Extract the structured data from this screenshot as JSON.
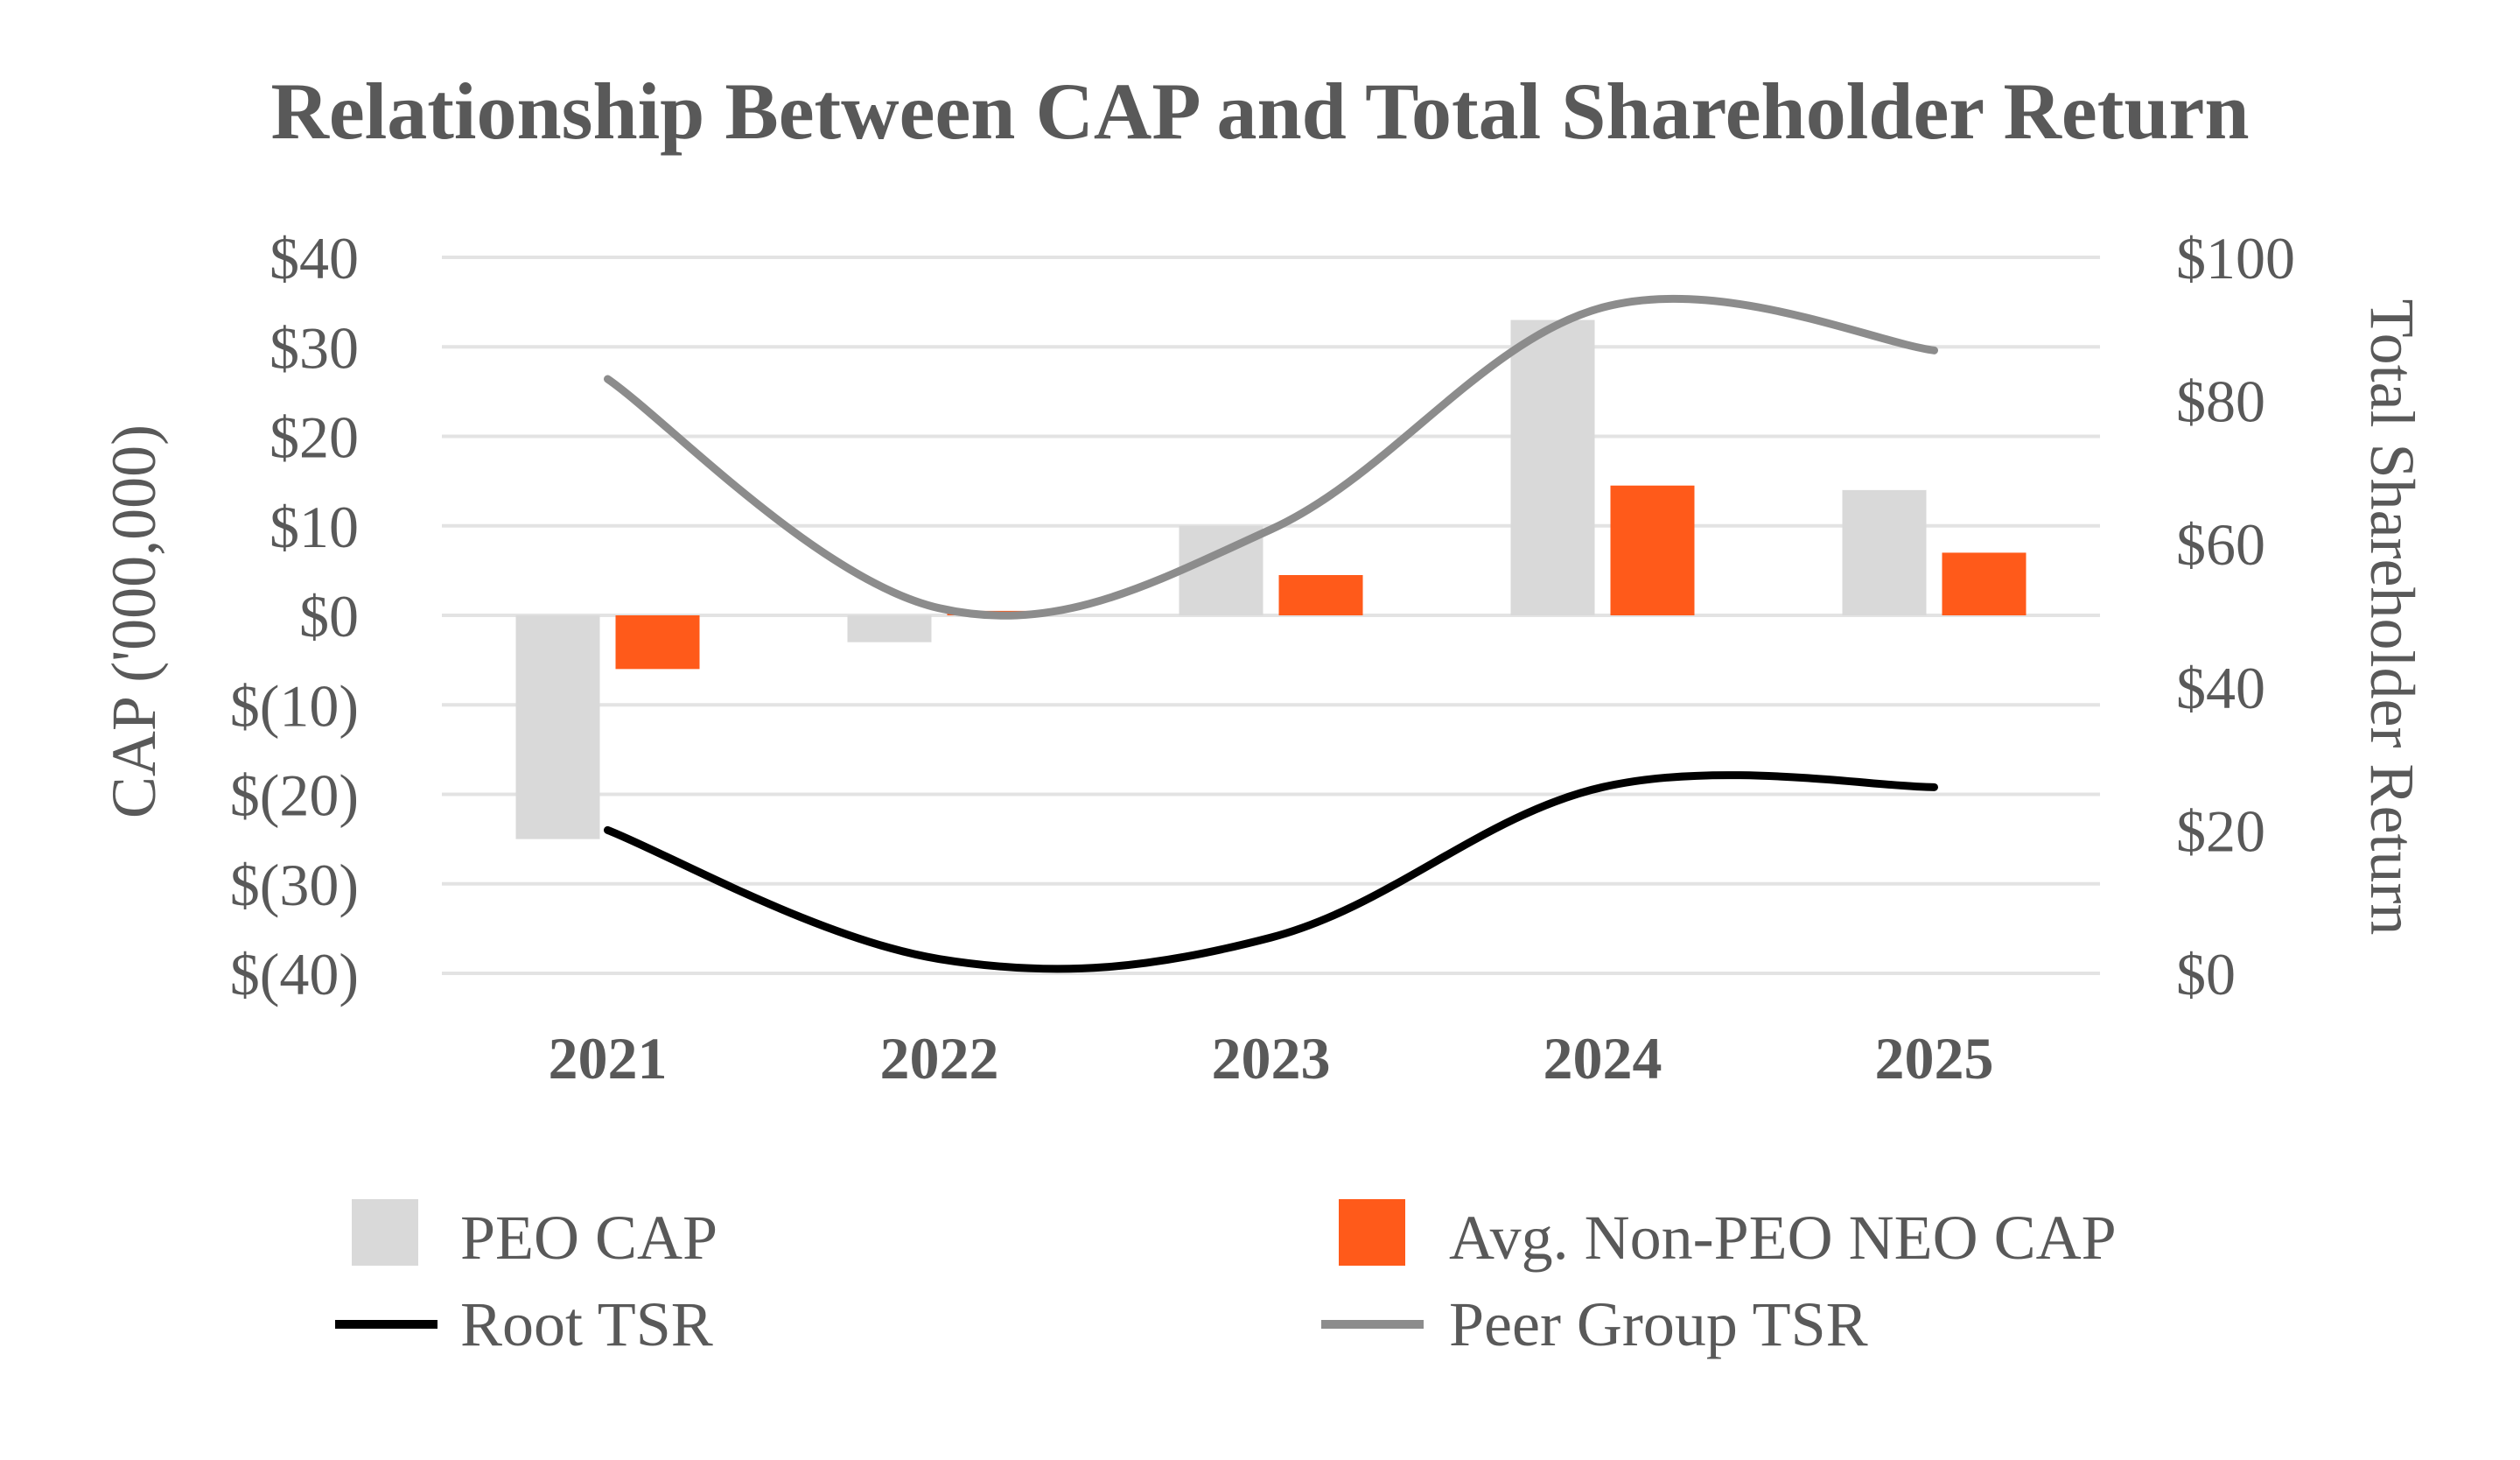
{
  "chart_data": {
    "type": "bar",
    "title": "Relationship Between CAP and Total Shareholder Return",
    "categories": [
      "2021",
      "2022",
      "2023",
      "2024",
      "2025"
    ],
    "ylabel": "CAP ('000,000)",
    "ylabel_right": "Total Shareholder Return",
    "ylim": [
      -40,
      40
    ],
    "ylim_right": [
      0,
      100
    ],
    "y_ticks": [
      "$40",
      "$30",
      "$20",
      "$10",
      "$0",
      "$(10)",
      "$(20)",
      "$(30)",
      "$(40)"
    ],
    "y_ticks_right": [
      "$100",
      "$80",
      "$60",
      "$40",
      "$20",
      "$0"
    ],
    "grid": true,
    "legend_position": "bottom",
    "bar_series": [
      {
        "name": "PEO CAP",
        "color": "#d9d9d9",
        "axis": "left",
        "values": [
          -25,
          -3,
          10,
          33,
          14
        ]
      },
      {
        "name": "Avg. Non-PEO NEO CAP",
        "color": "#ff5a1a",
        "axis": "left",
        "values": [
          -6,
          0.5,
          4.5,
          14.5,
          7
        ]
      }
    ],
    "line_series": [
      {
        "name": "Root TSR",
        "color": "#000000",
        "axis": "right",
        "values": [
          20,
          2,
          5,
          26,
          26
        ]
      },
      {
        "name": "Peer Group TSR",
        "color": "#8c8c8c",
        "axis": "right",
        "values": [
          83,
          51,
          62,
          93,
          87
        ]
      }
    ]
  }
}
